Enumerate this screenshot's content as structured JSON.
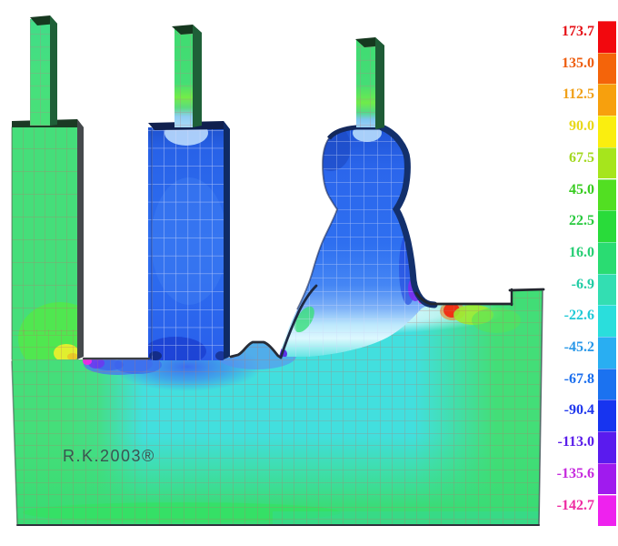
{
  "watermark": "R.K.2003®",
  "legend": {
    "position": "right",
    "entries": [
      {
        "value": "173.7",
        "color": "#F2080E",
        "text_color": "#E61218"
      },
      {
        "value": "135.0",
        "color": "#F4640A",
        "text_color": "#EE5E10"
      },
      {
        "value": "112.5",
        "color": "#F7A00D",
        "text_color": "#F0A018"
      },
      {
        "value": "90.0",
        "color": "#FAEE0F",
        "text_color": "#E8D81A"
      },
      {
        "value": "67.5",
        "color": "#A6E51C",
        "text_color": "#A2D81E"
      },
      {
        "value": "45.0",
        "color": "#52DF22",
        "text_color": "#38CC20"
      },
      {
        "value": "22.5",
        "color": "#29DB3A",
        "text_color": "#28C93E"
      },
      {
        "value": "16.0",
        "color": "#2ADC72",
        "text_color": "#26CE74"
      },
      {
        "value": "-6.9",
        "color": "#33DEB2",
        "text_color": "#1FCCA4"
      },
      {
        "value": "-22.6",
        "color": "#2ADEDC",
        "text_color": "#1FC9D6"
      },
      {
        "value": "-45.2",
        "color": "#29AEF2",
        "text_color": "#2897E8"
      },
      {
        "value": "-67.8",
        "color": "#1B72F0",
        "text_color": "#1A6EEE"
      },
      {
        "value": "-90.4",
        "color": "#1734F0",
        "text_color": "#2038EE"
      },
      {
        "value": "-113.0",
        "color": "#5A1BEE",
        "text_color": "#5A1EEA"
      },
      {
        "value": "-135.6",
        "color": "#A01BEE",
        "text_color": "#C62ADE"
      },
      {
        "value": "-142.7",
        "color": "#EE22EE",
        "text_color": "#EE2CA2"
      }
    ]
  },
  "chart_data": {
    "type": "heatmap",
    "title": "Finite-element contour plot of a machine-part cross-section with mesh overlay",
    "watermark": "R.K.2003®",
    "legend_position": "right",
    "grid": "finite-element quad mesh overlay",
    "colorbar_values": [
      173.7,
      135.0,
      112.5,
      90.0,
      67.5,
      45.0,
      22.5,
      16.0,
      -6.9,
      -22.6,
      -45.2,
      -67.8,
      -90.4,
      -113.0,
      -135.6,
      -142.7
    ],
    "colorbar_colors": [
      "#F2080E",
      "#F4640A",
      "#F7A00D",
      "#FAEE0F",
      "#A6E51C",
      "#52DF22",
      "#29DB3A",
      "#2ADC72",
      "#33DEB2",
      "#2ADEDC",
      "#29AEF2",
      "#1B72F0",
      "#1734F0",
      "#5A1BEE",
      "#A01BEE",
      "#EE22EE"
    ],
    "regions": [
      {
        "name": "left-chimney",
        "approx_value": 16,
        "color": "spring-green"
      },
      {
        "name": "left-pedestal",
        "approx_value": 10,
        "color": "spring-green"
      },
      {
        "name": "middle-chimney",
        "approx_value": 16,
        "color": "spring-green"
      },
      {
        "name": "middle-column",
        "approx_value": -80,
        "color": "royal-blue"
      },
      {
        "name": "right-chimney",
        "approx_value": 16,
        "color": "spring-green"
      },
      {
        "name": "bottle-shaped-riser",
        "approx_value": -70,
        "color": "royal-blue"
      },
      {
        "name": "base-slab-center",
        "approx_value": -25,
        "color": "cyan"
      },
      {
        "name": "base-slab-left-right-bottom",
        "approx_value": 0,
        "color": "green"
      },
      {
        "name": "hotspot-pedestal-corner",
        "approx_value": 90,
        "color": "yellow"
      },
      {
        "name": "singularity-pedestal-corner",
        "approx_value": -142,
        "color": "magenta"
      },
      {
        "name": "hotspot-right-of-riser-foot",
        "approx_value": 173,
        "color": "red"
      },
      {
        "name": "hotspot-riser-foot-violet",
        "approx_value": -113,
        "color": "violet"
      },
      {
        "name": "hotspot-right-of-red",
        "approx_value": 67,
        "color": "chartreuse"
      }
    ]
  }
}
